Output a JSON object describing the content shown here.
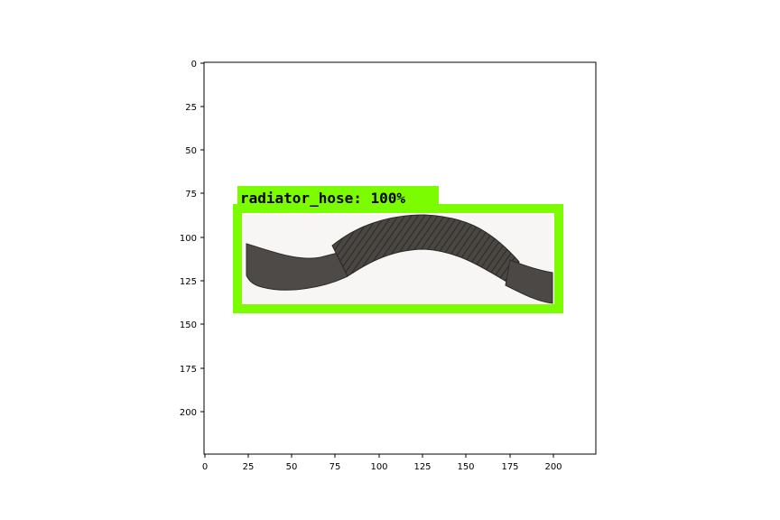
{
  "figure": {
    "x_ticks": [
      "0",
      "25",
      "50",
      "75",
      "100",
      "125",
      "150",
      "175",
      "200"
    ],
    "y_ticks": [
      "0",
      "25",
      "50",
      "75",
      "100",
      "125",
      "150",
      "175",
      "200"
    ]
  },
  "image": {
    "object": "black corrugated rubber radiator hose",
    "background_color": "#ffffff",
    "hose_color": "#3d3a37"
  },
  "detection": {
    "label": "radiator_hose: 100%",
    "box_color": "#7cfc00"
  }
}
